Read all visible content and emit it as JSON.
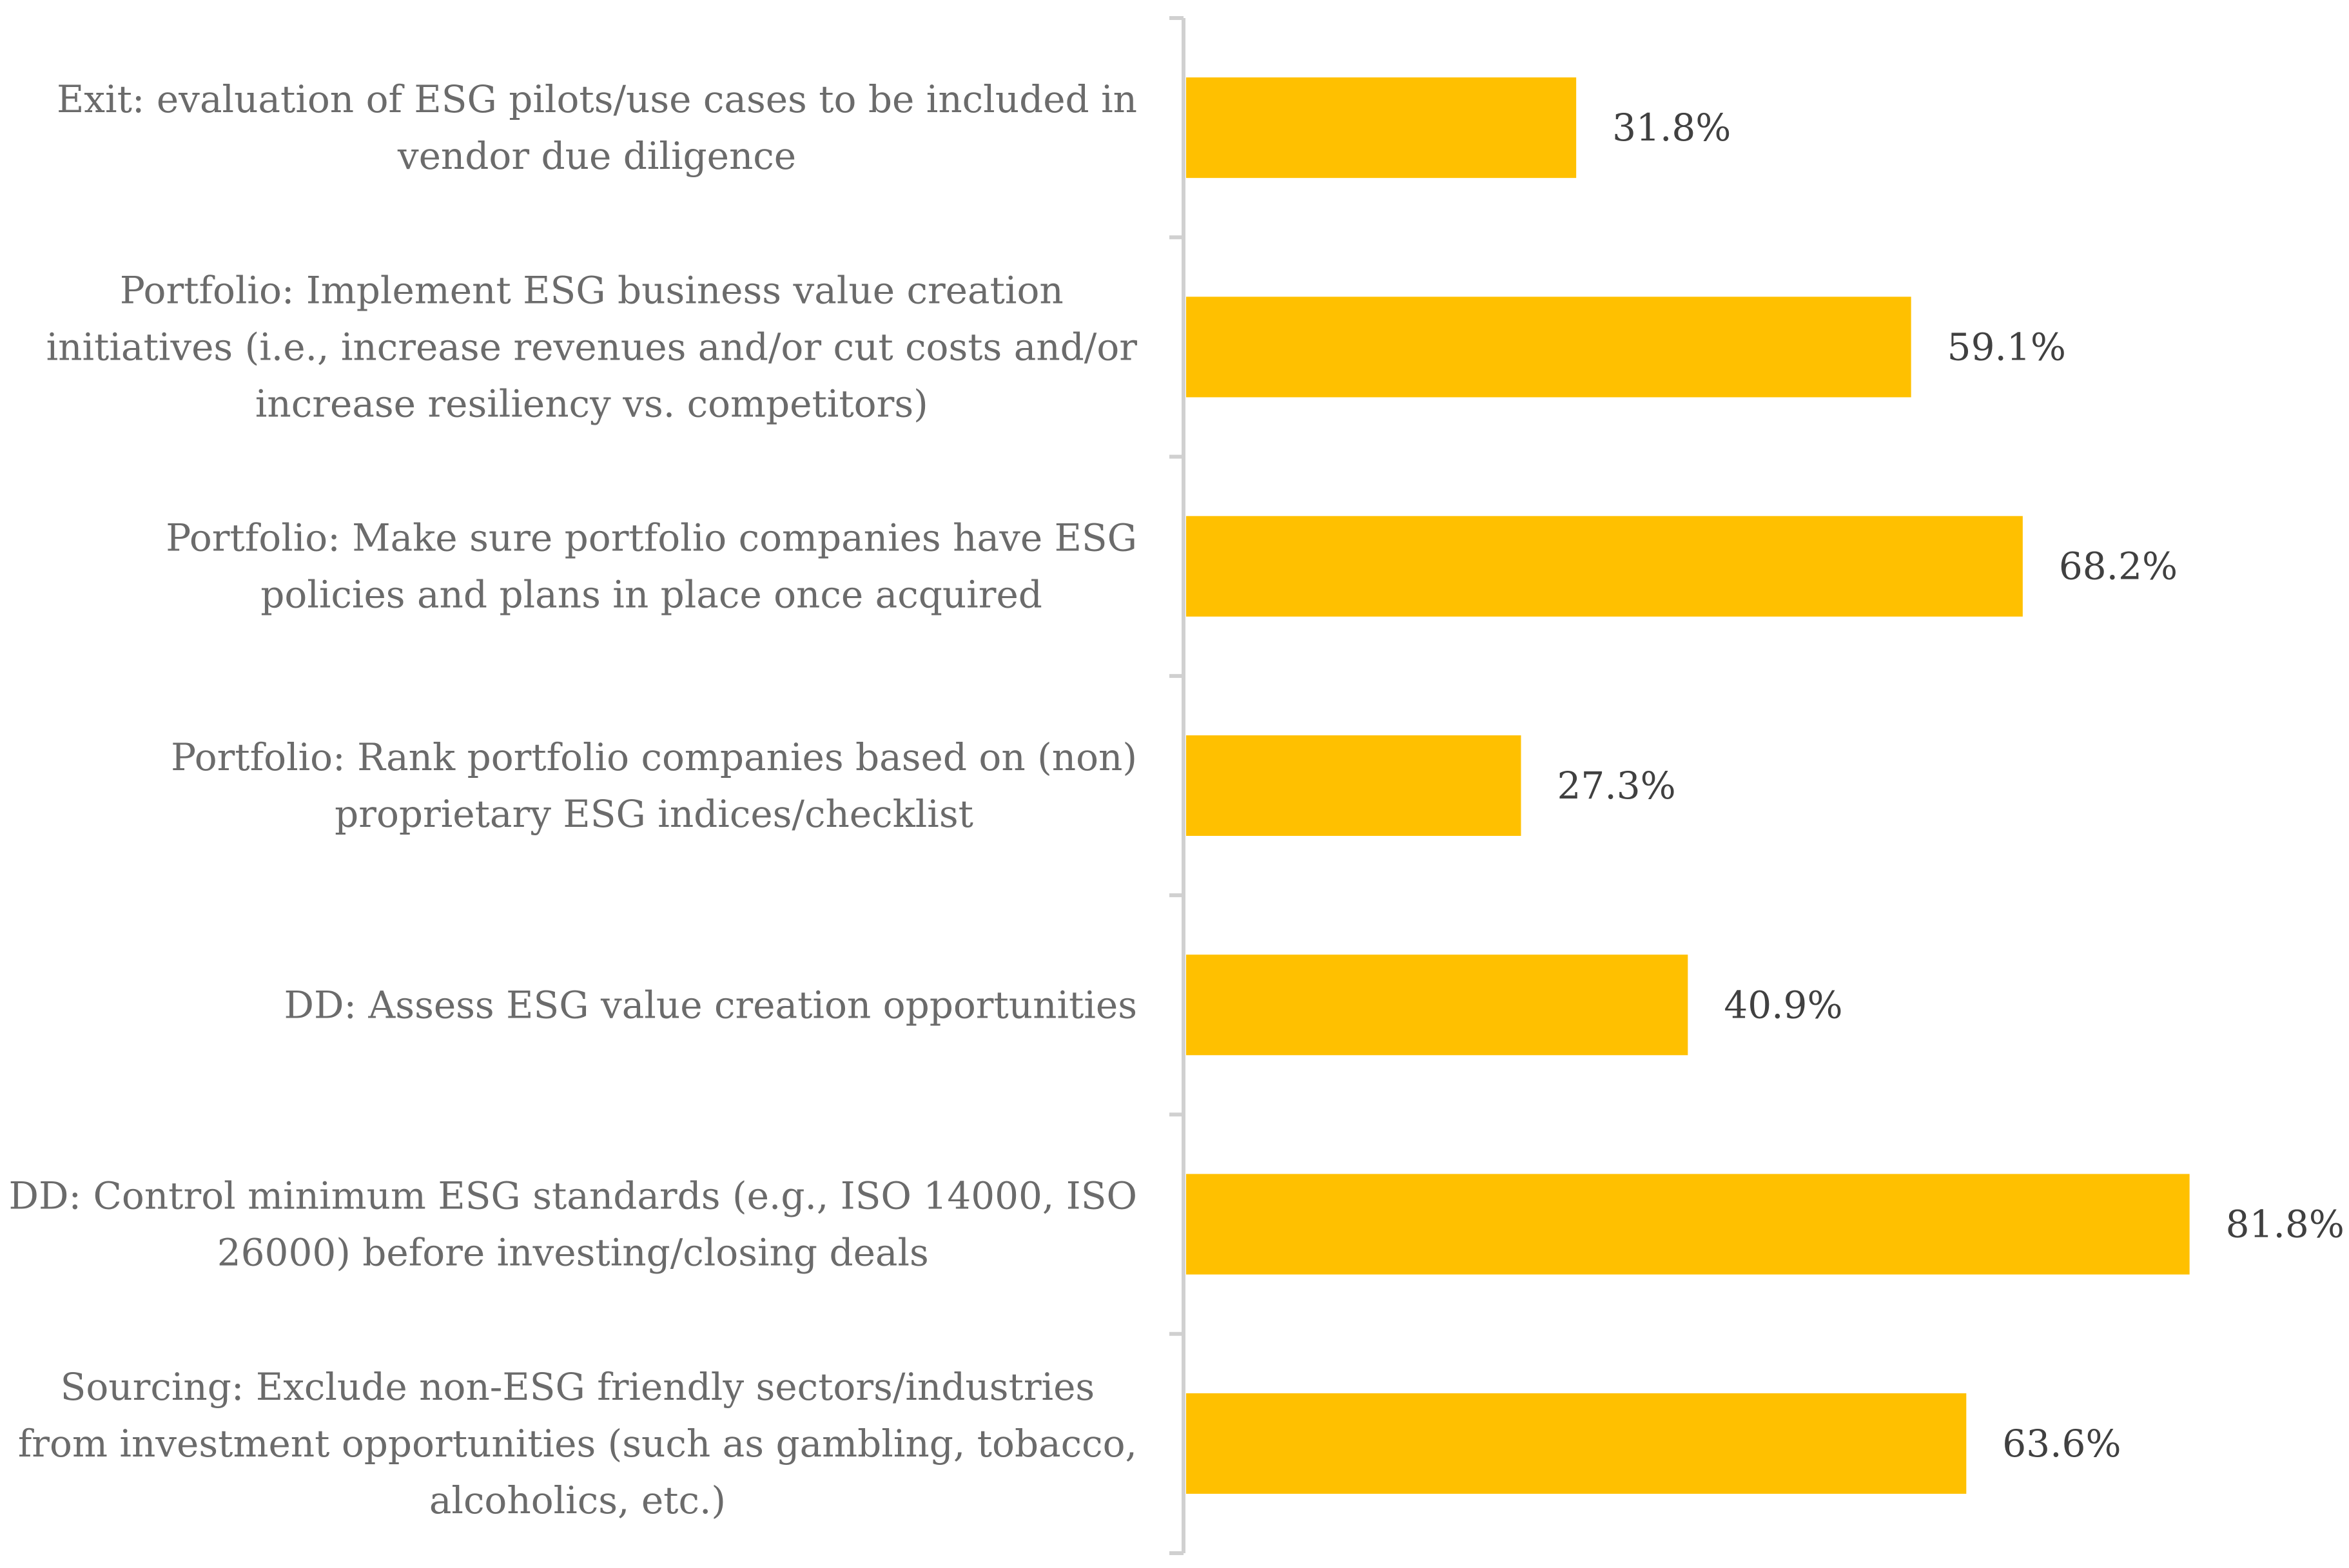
{
  "chart_data": {
    "type": "bar",
    "orientation": "horizontal",
    "title": "",
    "xlabel": "",
    "ylabel": "",
    "xlim": [
      0,
      82
    ],
    "grid": false,
    "legend": "none",
    "bar_color": "#FFC000",
    "axis_color": "#d0d0d0",
    "categories": [
      {
        "lines": [
          "Exit: evaluation of ESG pilots/use cases to be included in",
          "vendor due diligence"
        ],
        "value": 31.8,
        "value_label": "31.8%"
      },
      {
        "lines": [
          "Portfolio: Implement ESG business value creation",
          "initiatives (i.e., increase revenues and/or cut costs and/or",
          "increase resiliency vs. competitors)"
        ],
        "value": 59.1,
        "value_label": "59.1%"
      },
      {
        "lines": [
          "Portfolio: Make sure portfolio companies have ESG",
          "policies and plans in place once acquired"
        ],
        "value": 68.2,
        "value_label": "68.2%"
      },
      {
        "lines": [
          "Portfolio: Rank portfolio companies based on (non)",
          "proprietary ESG indices/checklist"
        ],
        "value": 27.3,
        "value_label": "27.3%"
      },
      {
        "lines": [
          "DD: Assess ESG value creation opportunities"
        ],
        "value": 40.9,
        "value_label": "40.9%"
      },
      {
        "lines": [
          "DD: Control minimum ESG standards (e.g., ISO 14000, ISO",
          "26000) before investing/closing deals"
        ],
        "value": 81.8,
        "value_label": "81.8%"
      },
      {
        "lines": [
          "Sourcing: Exclude non-ESG friendly sectors/industries",
          "from investment opportunities (such as gambling, tobacco,",
          "alcoholics, etc.)"
        ],
        "value": 63.6,
        "value_label": "63.6%"
      }
    ]
  }
}
